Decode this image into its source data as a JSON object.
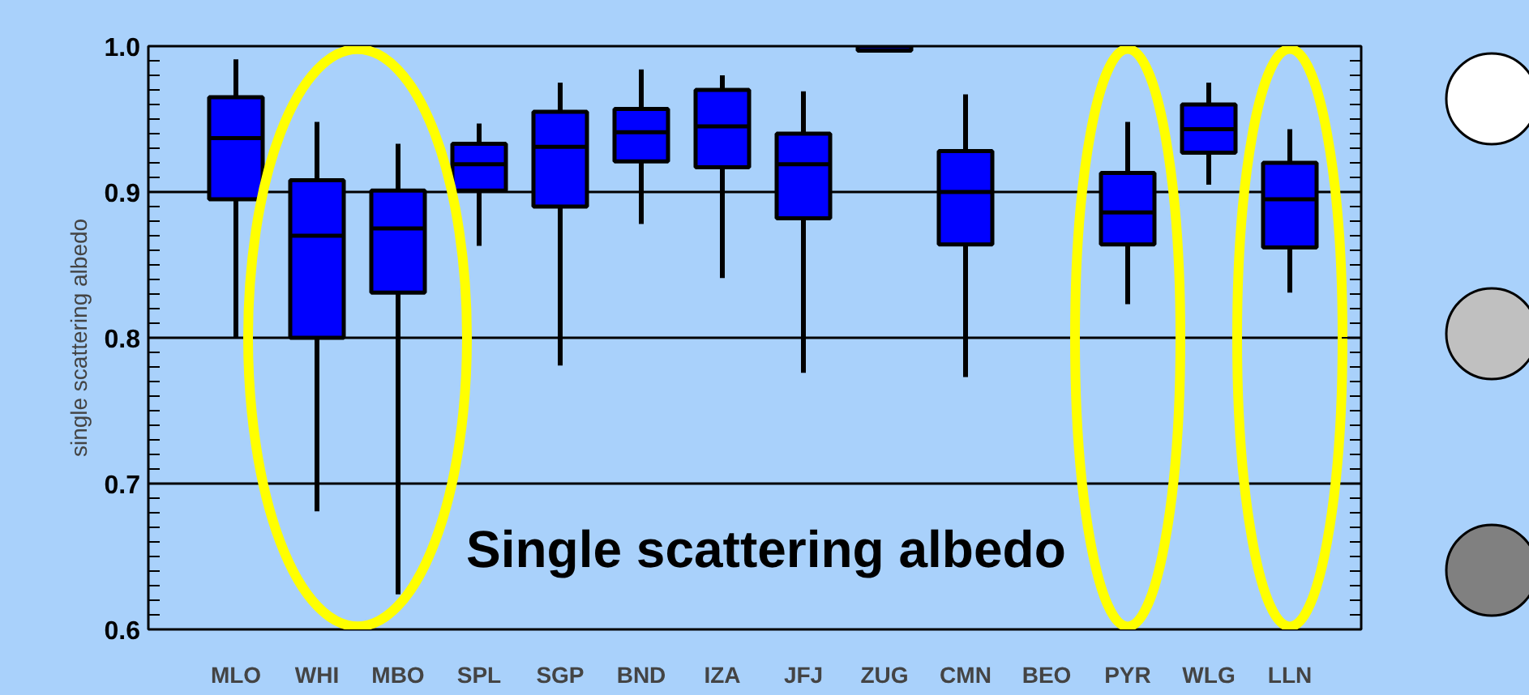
{
  "chart_data": {
    "type": "box",
    "ylabel": "single scattering albedo",
    "categories": [
      "MLO",
      "WHI",
      "MBO",
      "SPL",
      "SGP",
      "BND",
      "IZA",
      "JFJ",
      "ZUG",
      "CMN",
      "BEO",
      "PYR",
      "WLG",
      "LLN"
    ],
    "color": "#0000ff",
    "boxes": [
      {
        "low": 0.8,
        "q1": 0.895,
        "median": 0.937,
        "q3": 0.965,
        "high": 0.991
      },
      {
        "low": 0.681,
        "q1": 0.8,
        "median": 0.87,
        "q3": 0.908,
        "high": 0.948
      },
      {
        "low": 0.624,
        "q1": 0.831,
        "median": 0.875,
        "q3": 0.901,
        "high": 0.933
      },
      {
        "low": 0.863,
        "q1": 0.901,
        "median": 0.919,
        "q3": 0.933,
        "high": 0.947
      },
      {
        "low": 0.781,
        "q1": 0.89,
        "median": 0.931,
        "q3": 0.955,
        "high": 0.975
      },
      {
        "low": 0.878,
        "q1": 0.921,
        "median": 0.941,
        "q3": 0.957,
        "high": 0.984
      },
      {
        "low": 0.841,
        "q1": 0.917,
        "median": 0.945,
        "q3": 0.97,
        "high": 0.98
      },
      {
        "low": 0.776,
        "q1": 0.882,
        "median": 0.919,
        "q3": 0.94,
        "high": 0.969
      },
      {
        "low": 0.997,
        "q1": 0.997,
        "median": 0.997,
        "q3": 1.0,
        "high": 1.0
      },
      {
        "low": 0.773,
        "q1": 0.864,
        "median": 0.9,
        "q3": 0.928,
        "high": 0.967
      },
      null,
      {
        "low": 0.823,
        "q1": 0.864,
        "median": 0.886,
        "q3": 0.913,
        "high": 0.948
      },
      {
        "low": 0.905,
        "q1": 0.927,
        "median": 0.943,
        "q3": 0.96,
        "high": 0.975
      },
      {
        "low": 0.831,
        "q1": 0.862,
        "median": 0.895,
        "q3": 0.92,
        "high": 0.943
      }
    ],
    "ylim": [
      0.6,
      1.0
    ],
    "yticks": [
      {
        "value": 0.6,
        "label": "0.6"
      },
      {
        "value": 0.7,
        "label": "0.7"
      },
      {
        "value": 0.8,
        "label": "0.8"
      },
      {
        "value": 0.9,
        "label": "0.9"
      },
      {
        "value": 1.0,
        "label": "1.0"
      }
    ],
    "grid": "y",
    "annotations": [
      "Single scattering albedo"
    ]
  }
}
